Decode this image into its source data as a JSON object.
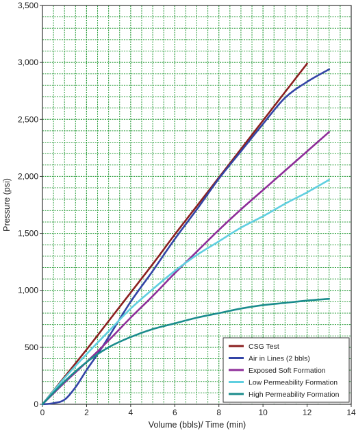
{
  "chart_data": {
    "type": "line",
    "xlabel": "Volume (bbls)/ Time (min)",
    "ylabel": "Pressure (psi)",
    "xlim": [
      0,
      14
    ],
    "ylim": [
      0,
      3500
    ],
    "x_ticks": [
      "0",
      "2",
      "4",
      "6",
      "8",
      "10",
      "12",
      "14"
    ],
    "y_ticks": [
      "0",
      "500",
      "1,000",
      "1,500",
      "2,000",
      "2,500",
      "3,000",
      "3,500"
    ],
    "grid": true,
    "grid_color": "#2e9e3e",
    "legend_position": "bottom-right",
    "series": [
      {
        "name": "CSG Test",
        "color": "#8b1f1f",
        "points": [
          [
            0,
            0
          ],
          [
            1,
            240
          ],
          [
            2,
            480
          ],
          [
            3,
            730
          ],
          [
            4,
            980
          ],
          [
            5,
            1230
          ],
          [
            6,
            1490
          ],
          [
            7,
            1740
          ],
          [
            8,
            1990
          ],
          [
            9,
            2240
          ],
          [
            10,
            2490
          ],
          [
            11,
            2740
          ],
          [
            12,
            2990
          ]
        ]
      },
      {
        "name": "Air in Lines (2 bbls)",
        "color": "#3344a6",
        "points": [
          [
            0,
            0
          ],
          [
            0.5,
            10
          ],
          [
            1,
            40
          ],
          [
            1.5,
            150
          ],
          [
            2,
            300
          ],
          [
            2.5,
            440
          ],
          [
            3,
            590
          ],
          [
            4,
            900
          ],
          [
            5,
            1170
          ],
          [
            6,
            1450
          ],
          [
            7,
            1710
          ],
          [
            8,
            1980
          ],
          [
            9,
            2220
          ],
          [
            10,
            2460
          ],
          [
            11,
            2690
          ],
          [
            12,
            2830
          ],
          [
            13,
            2940
          ]
        ]
      },
      {
        "name": "Exposed Soft Formation",
        "color": "#8e2d99",
        "points": [
          [
            0,
            0
          ],
          [
            1,
            190
          ],
          [
            2,
            370
          ],
          [
            3,
            560
          ],
          [
            4,
            760
          ],
          [
            5,
            950
          ],
          [
            6,
            1150
          ],
          [
            7,
            1340
          ],
          [
            8,
            1530
          ],
          [
            9,
            1710
          ],
          [
            10,
            1880
          ],
          [
            11,
            2050
          ],
          [
            12,
            2220
          ],
          [
            13,
            2390
          ]
        ]
      },
      {
        "name": "Low Permeability Formation",
        "color": "#5fcfe0",
        "points": [
          [
            0,
            0
          ],
          [
            1,
            230
          ],
          [
            2,
            440
          ],
          [
            3,
            640
          ],
          [
            4,
            840
          ],
          [
            5,
            1010
          ],
          [
            6,
            1170
          ],
          [
            7,
            1310
          ],
          [
            8,
            1430
          ],
          [
            9,
            1550
          ],
          [
            10,
            1650
          ],
          [
            11,
            1760
          ],
          [
            12,
            1860
          ],
          [
            13,
            1970
          ]
        ]
      },
      {
        "name": "High Permeability Formation",
        "color": "#1a8c8c",
        "points": [
          [
            0,
            0
          ],
          [
            1,
            200
          ],
          [
            2,
            370
          ],
          [
            3,
            500
          ],
          [
            4,
            590
          ],
          [
            5,
            660
          ],
          [
            6,
            710
          ],
          [
            7,
            760
          ],
          [
            8,
            800
          ],
          [
            9,
            840
          ],
          [
            10,
            870
          ],
          [
            11,
            890
          ],
          [
            12,
            910
          ],
          [
            13,
            925
          ]
        ]
      }
    ]
  }
}
